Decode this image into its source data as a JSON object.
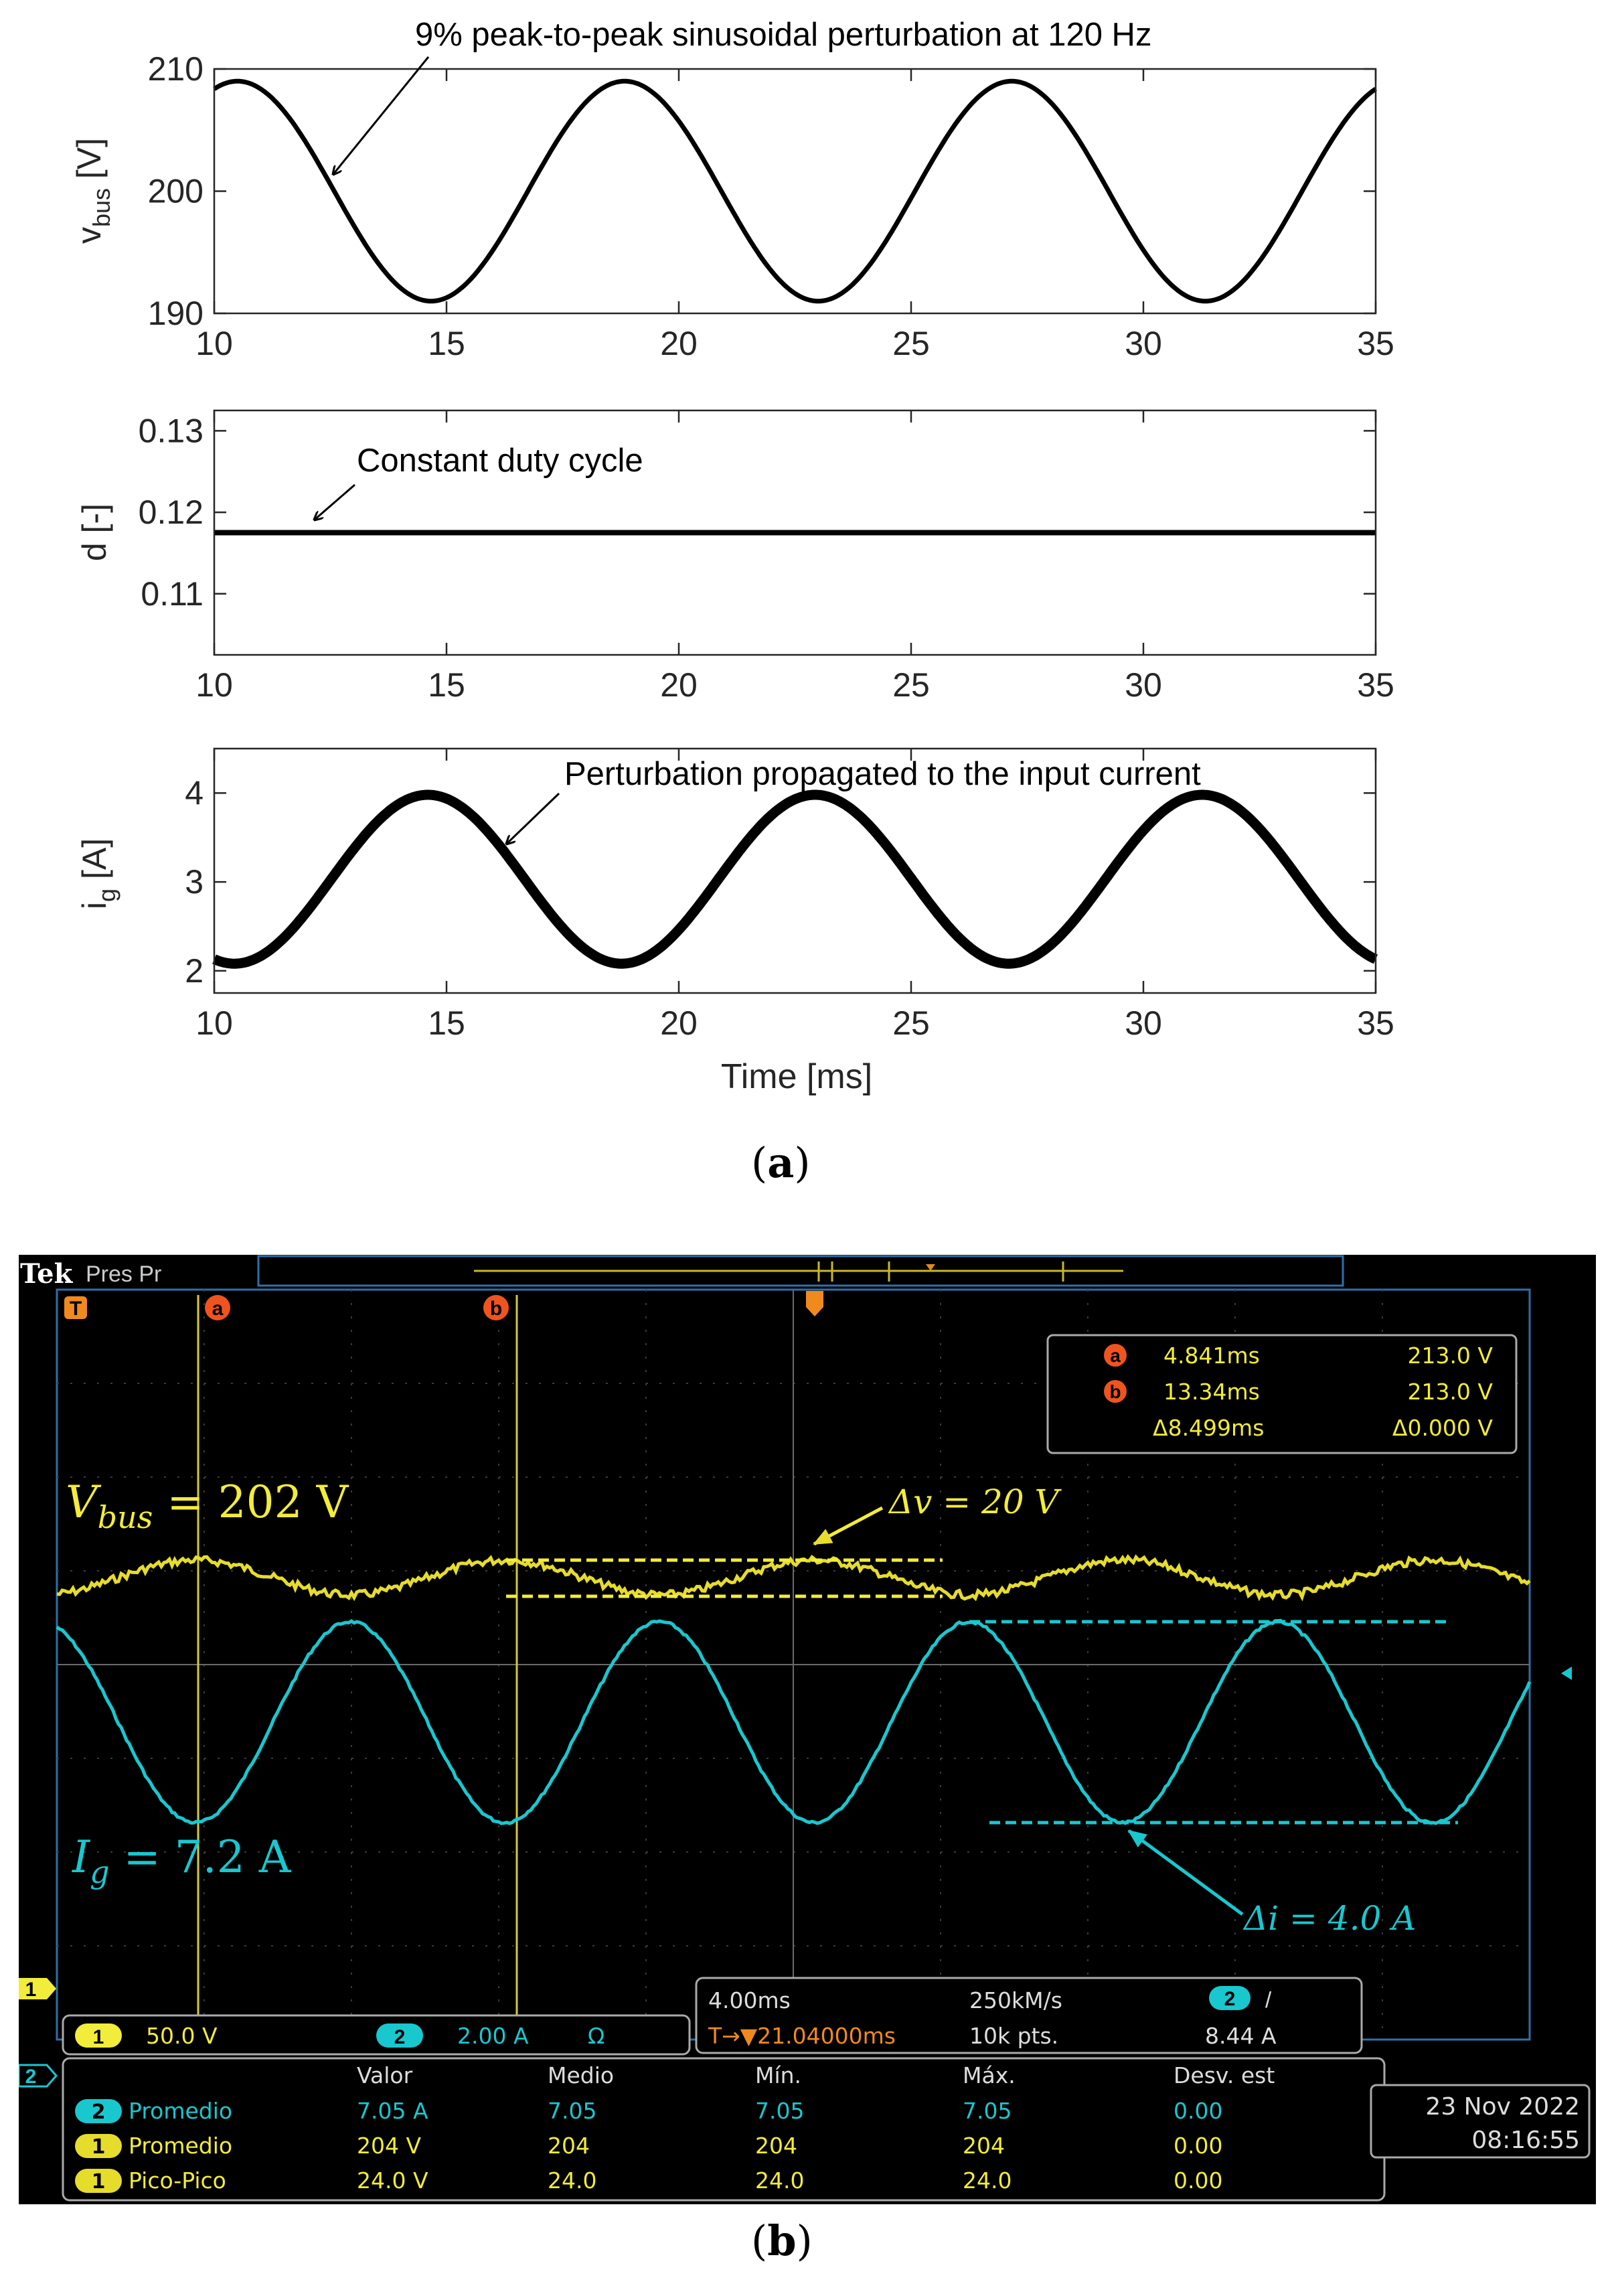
{
  "figure": {
    "label_a": "(a)",
    "label_b": "(b)"
  },
  "chart_data": [
    {
      "type": "line",
      "title": "",
      "xlabel": "",
      "ylabel": "v_bus [V]",
      "ylabel_main": "v",
      "ylabel_sub": "bus",
      "ylabel_unit": " [V]",
      "xlim": [
        10,
        35
      ],
      "ylim": [
        190,
        210
      ],
      "xticks": [
        10,
        15,
        20,
        25,
        30,
        35
      ],
      "yticks": [
        190,
        200,
        210
      ],
      "grid": false,
      "wave": {
        "offset": 200,
        "amplitude": 9,
        "frequency_hz": 120,
        "peak_at_ms": 10.5
      },
      "annotation": {
        "text": "9% peak-to-peak sinusoidal perturbation at 120 Hz",
        "point": [
          12.5,
          201.5
        ]
      }
    },
    {
      "type": "line",
      "title": "",
      "xlabel": "",
      "ylabel": "d [-]",
      "xlim": [
        10,
        35
      ],
      "ylim": [
        0.1025,
        0.1325
      ],
      "xticks": [
        10,
        15,
        20,
        25,
        30,
        35
      ],
      "yticks": [
        0.11,
        0.12,
        0.13
      ],
      "ytick_labels": [
        "0.11",
        "0.12",
        "0.13"
      ],
      "grid": false,
      "x": [
        10,
        35
      ],
      "y": [
        0.1175,
        0.1175
      ],
      "annotation": {
        "text": "Constant duty cycle",
        "point": [
          12.1,
          0.1185
        ]
      }
    },
    {
      "type": "line",
      "title": "",
      "xlabel": "Time [ms]",
      "ylabel": "i_g [A]",
      "ylabel_main": "i",
      "ylabel_sub": "g",
      "ylabel_unit": " [A]",
      "xlim": [
        10,
        35
      ],
      "ylim": [
        1.75,
        4.5
      ],
      "xticks": [
        10,
        15,
        20,
        25,
        30,
        35
      ],
      "yticks": [
        2,
        3,
        4
      ],
      "grid": false,
      "wave": {
        "offset": 3.03,
        "amplitude": 0.95,
        "frequency_hz": 120,
        "peak_at_ms": 14.6
      },
      "annotation": {
        "text": "Perturbation propagated to the input current",
        "point": [
          16.2,
          3.5
        ]
      }
    }
  ],
  "oscilloscope": {
    "brand": "Tek",
    "mode": "Pres Pr",
    "cursor_a_marker": "a",
    "cursor_b_marker": "b",
    "trigger_marker": "T",
    "channel_1_marker": "1",
    "channel_2_marker": "2",
    "cursors": {
      "a_time": "4.841ms",
      "a_volt": "213.0 V",
      "b_time": "13.34ms",
      "b_volt": "213.0 V",
      "delta_time": "Δ8.499ms",
      "delta_volt": "Δ0.000 V"
    },
    "labels": {
      "vbus_main": "V",
      "vbus_sub": "bus",
      "vbus_value": " = 202 V",
      "dv_text": "Δv = 20 V",
      "ig_main": "I",
      "ig_sub": "g",
      "ig_value": " = 7.2 A",
      "di_text": "Δi = 4.0 A"
    },
    "channels": {
      "ch1_scale": "50.0 V",
      "ch2_scale": "2.00 A",
      "ch2_coupling": "Ω"
    },
    "timebase": {
      "horizontal": "4.00ms",
      "sample_rate": "250kM/s",
      "trigger_channel": "2",
      "trigger_slope": "/",
      "trigger_pos": "T→▼21.04000ms",
      "record_length": "10k pts.",
      "trigger_level": "8.44 A"
    },
    "measurements": {
      "headers": [
        "Valor",
        "Medio",
        "Mín.",
        "Máx.",
        "Desv. est"
      ],
      "rows": [
        {
          "channel": "2",
          "name": "Promedio",
          "values": [
            "7.05 A",
            "7.05",
            "7.05",
            "7.05",
            "0.00"
          ]
        },
        {
          "channel": "1",
          "name": "Promedio",
          "values": [
            "204 V",
            "204",
            "204",
            "204",
            "0.00"
          ]
        },
        {
          "channel": "1",
          "name": "Pico-Pico",
          "values": [
            "24.0 V",
            "24.0",
            "24.0",
            "24.0",
            "0.00"
          ]
        }
      ]
    },
    "datetime": {
      "date": "23 Nov 2022",
      "time": "08:16:55"
    },
    "colors": {
      "ch1": "#e6dc2c",
      "ch2": "#19c7cf",
      "cursor_marker": "#f0541e",
      "frame": "#2f6fa8",
      "background": "#000000"
    }
  }
}
